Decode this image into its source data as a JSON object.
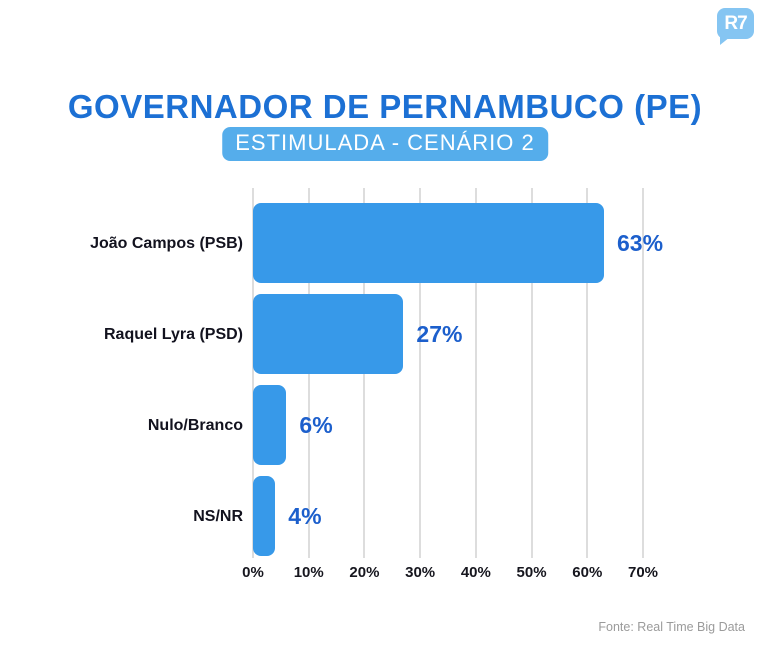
{
  "logo": {
    "text": "R7"
  },
  "header": {
    "title": "GOVERNADOR DE PERNAMBUCO (PE)",
    "subtitle": "ESTIMULADA - CENÁRIO 2"
  },
  "chart_data": {
    "type": "bar",
    "orientation": "horizontal",
    "title": "GOVERNADOR DE PERNAMBUCO (PE)",
    "subtitle": "ESTIMULADA - CENÁRIO 2",
    "categories": [
      "João Campos (PSB)",
      "Raquel Lyra (PSD)",
      "Nulo/Branco",
      "NS/NR"
    ],
    "values": [
      63,
      27,
      6,
      4
    ],
    "value_labels": [
      "63%",
      "27%",
      "6%",
      "4%"
    ],
    "x_ticks": [
      "0%",
      "10%",
      "20%",
      "30%",
      "40%",
      "50%",
      "60%",
      "70%"
    ],
    "xlim": [
      0,
      70
    ],
    "grid": true,
    "legend": false
  },
  "footer": {
    "source": "Fonte: Real Time Big Data"
  },
  "colors": {
    "background": "#FFFFFF",
    "title": "#1C70D4",
    "pill_bg": "#55ADEB",
    "pill_text": "#FFFFFF",
    "bar": "#3799E9",
    "value": "#1C5FCC",
    "category": "#12121E",
    "axis": "#16161E",
    "gridline": "#DDDDDD",
    "source": "#9B9B9B",
    "logo_bg": "#85C5F2",
    "logo_text": "#FFFFFF"
  }
}
